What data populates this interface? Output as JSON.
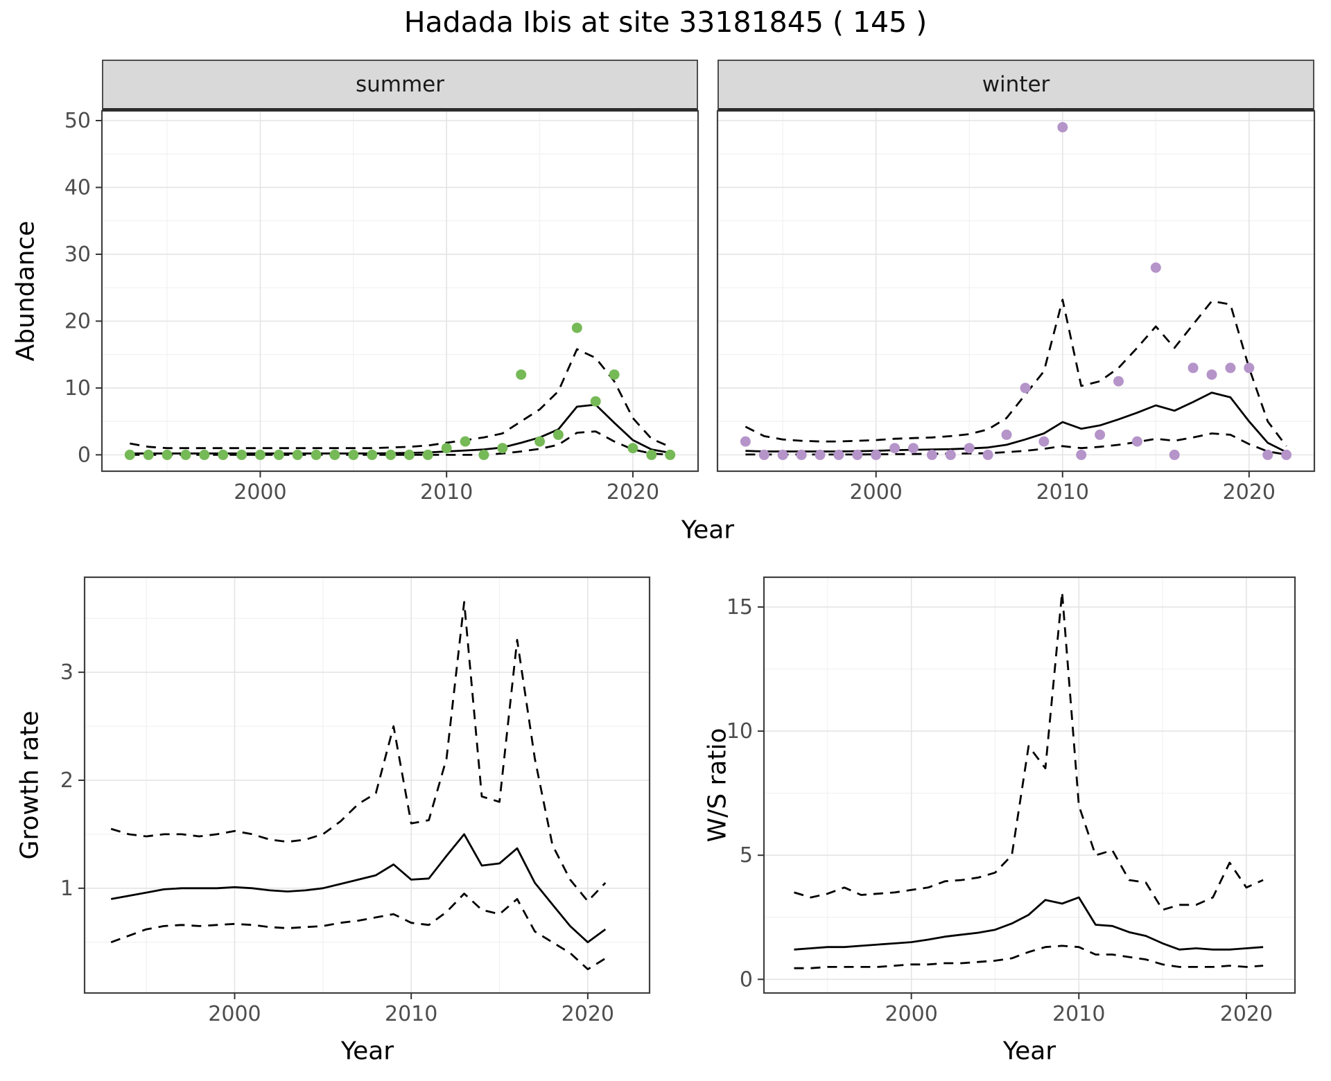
{
  "title": "Hadada Ibis at site 33181845 ( 145 )",
  "colors": {
    "summer_point": "#76b957",
    "winter_point": "#b594c9",
    "line": "#000000",
    "grid_major": "#e4e4e4",
    "grid_minor": "#f1f1f1",
    "panel_border": "#404040",
    "tick": "#333333",
    "strip_bg": "#d9d9d9"
  },
  "chart_data": [
    {
      "id": "abundance_summer",
      "type": "scatter+line",
      "facet_label": "summer",
      "xlabel": "Year",
      "ylabel": "Abundance",
      "xlim": [
        1991.5,
        2023.5
      ],
      "ylim": [
        -2.45,
        51.45
      ],
      "xticks": [
        2000,
        2010,
        2020
      ],
      "yticks": [
        0,
        10,
        20,
        30,
        40,
        50
      ],
      "xminor": [
        1995,
        2005,
        2015
      ],
      "yminor": [
        5,
        15,
        25,
        35,
        45
      ],
      "legend": "none",
      "grid": true,
      "point_color": "#76b957",
      "x": [
        1993,
        1994,
        1995,
        1996,
        1997,
        1998,
        1999,
        2000,
        2001,
        2002,
        2003,
        2004,
        2005,
        2006,
        2007,
        2008,
        2009,
        2010,
        2011,
        2012,
        2013,
        2014,
        2015,
        2016,
        2017,
        2018,
        2019,
        2020,
        2021,
        2022
      ],
      "points": [
        0,
        0,
        0,
        0,
        0,
        0,
        0,
        0,
        0,
        0,
        0,
        0,
        0,
        0,
        0,
        0,
        0,
        1,
        2,
        0,
        1,
        12,
        2,
        3,
        19,
        8,
        12,
        1,
        0,
        0
      ],
      "fit": [
        0.2,
        0.2,
        0.2,
        0.2,
        0.2,
        0.2,
        0.2,
        0.2,
        0.2,
        0.2,
        0.2,
        0.2,
        0.2,
        0.2,
        0.25,
        0.3,
        0.35,
        0.5,
        0.65,
        0.8,
        1.1,
        1.8,
        2.6,
        3.8,
        7.2,
        7.5,
        4.8,
        2.2,
        0.8,
        0.3
      ],
      "upper": [
        1.7,
        1.2,
        1.0,
        1.0,
        1.0,
        1.0,
        1.0,
        1.0,
        1.0,
        1.0,
        1.0,
        1.0,
        1.0,
        1.0,
        1.1,
        1.2,
        1.4,
        1.8,
        2.2,
        2.6,
        3.2,
        5.0,
        6.8,
        9.5,
        15.8,
        14.5,
        11.0,
        5.5,
        2.4,
        1.2
      ],
      "lower": [
        0,
        0,
        0,
        0,
        0,
        0,
        0,
        0,
        0,
        0,
        0,
        0,
        0,
        0,
        0,
        0,
        0,
        0,
        0,
        0,
        0.2,
        0.5,
        0.9,
        1.5,
        3.3,
        3.5,
        2.0,
        0.8,
        0.2,
        0
      ]
    },
    {
      "id": "abundance_winter",
      "type": "scatter+line",
      "facet_label": "winter",
      "xlabel": "Year",
      "ylabel": "Abundance",
      "xlim": [
        1991.5,
        2023.5
      ],
      "ylim": [
        -2.45,
        51.45
      ],
      "xticks": [
        2000,
        2010,
        2020
      ],
      "yticks": [
        0,
        10,
        20,
        30,
        40,
        50
      ],
      "xminor": [
        1995,
        2005,
        2015
      ],
      "yminor": [
        5,
        15,
        25,
        35,
        45
      ],
      "legend": "none",
      "grid": true,
      "point_color": "#b594c9",
      "x": [
        1993,
        1994,
        1995,
        1996,
        1997,
        1998,
        1999,
        2000,
        2001,
        2002,
        2003,
        2004,
        2005,
        2006,
        2007,
        2008,
        2009,
        2010,
        2011,
        2012,
        2013,
        2014,
        2015,
        2016,
        2017,
        2018,
        2019,
        2020,
        2021,
        2022
      ],
      "points": [
        2,
        0,
        0,
        0,
        0,
        0,
        0,
        0,
        1,
        1,
        0,
        0,
        1,
        0,
        3,
        10,
        2,
        49,
        0,
        3,
        11,
        2,
        28,
        0,
        13,
        12,
        13,
        13,
        0,
        0
      ],
      "fit": [
        0.6,
        0.5,
        0.5,
        0.5,
        0.5,
        0.5,
        0.55,
        0.6,
        0.7,
        0.75,
        0.8,
        0.85,
        0.95,
        1.1,
        1.5,
        2.3,
        3.2,
        4.9,
        3.9,
        4.4,
        5.3,
        6.3,
        7.4,
        6.6,
        7.9,
        9.3,
        8.6,
        5.0,
        1.8,
        0.4
      ],
      "upper": [
        4.2,
        2.8,
        2.3,
        2.1,
        2.0,
        2.0,
        2.1,
        2.2,
        2.4,
        2.5,
        2.6,
        2.8,
        3.1,
        3.8,
        5.5,
        9.0,
        12.5,
        23.2,
        10.3,
        11.0,
        13.0,
        16.0,
        19.2,
        16.0,
        19.5,
        23.0,
        22.5,
        13.0,
        5.0,
        1.3
      ],
      "lower": [
        0.05,
        0.05,
        0.05,
        0.05,
        0.05,
        0.05,
        0.05,
        0.08,
        0.1,
        0.12,
        0.15,
        0.18,
        0.2,
        0.25,
        0.4,
        0.6,
        0.9,
        1.3,
        1.0,
        1.2,
        1.5,
        1.9,
        2.4,
        2.1,
        2.6,
        3.2,
        3.0,
        1.6,
        0.5,
        0.05
      ]
    },
    {
      "id": "growth_rate",
      "type": "line",
      "facet_label": null,
      "xlabel": "Year",
      "ylabel": "Growth rate",
      "xlim": [
        1991.5,
        2023.5
      ],
      "ylim": [
        0.03,
        3.88
      ],
      "xticks": [
        2000,
        2010,
        2020
      ],
      "yticks": [
        1,
        2,
        3
      ],
      "xminor": [
        1995,
        2005,
        2015
      ],
      "yminor": [
        0.5,
        1.5,
        2.5,
        3.5
      ],
      "legend": "none",
      "grid": true,
      "x": [
        1993,
        1994,
        1995,
        1996,
        1997,
        1998,
        1999,
        2000,
        2001,
        2002,
        2003,
        2004,
        2005,
        2006,
        2007,
        2008,
        2009,
        2010,
        2011,
        2012,
        2013,
        2014,
        2015,
        2016,
        2017,
        2018,
        2019,
        2020,
        2021
      ],
      "fit": [
        0.9,
        0.93,
        0.96,
        0.99,
        1.0,
        1.0,
        1.0,
        1.01,
        1.0,
        0.98,
        0.97,
        0.98,
        1.0,
        1.04,
        1.08,
        1.12,
        1.22,
        1.08,
        1.09,
        1.3,
        1.5,
        1.21,
        1.23,
        1.37,
        1.05,
        0.85,
        0.65,
        0.5,
        0.62
      ],
      "upper": [
        1.55,
        1.5,
        1.48,
        1.5,
        1.5,
        1.48,
        1.5,
        1.53,
        1.5,
        1.45,
        1.43,
        1.45,
        1.5,
        1.62,
        1.78,
        1.88,
        2.5,
        1.6,
        1.63,
        2.2,
        3.65,
        1.85,
        1.8,
        3.3,
        2.2,
        1.4,
        1.08,
        0.88,
        1.05
      ],
      "lower": [
        0.5,
        0.56,
        0.62,
        0.65,
        0.66,
        0.65,
        0.66,
        0.67,
        0.66,
        0.64,
        0.63,
        0.64,
        0.65,
        0.68,
        0.7,
        0.73,
        0.76,
        0.68,
        0.66,
        0.78,
        0.95,
        0.8,
        0.76,
        0.9,
        0.6,
        0.5,
        0.4,
        0.25,
        0.35
      ]
    },
    {
      "id": "ws_ratio",
      "type": "line",
      "facet_label": null,
      "xlabel": "Year",
      "ylabel": "W/S ratio",
      "xlim": [
        1991.2,
        2022.9
      ],
      "ylim": [
        -0.55,
        16.2
      ],
      "xticks": [
        2000,
        2010,
        2020
      ],
      "yticks": [
        0,
        5,
        10,
        15
      ],
      "xminor": [
        1995,
        2005,
        2015
      ],
      "yminor": [
        2.5,
        7.5,
        12.5
      ],
      "legend": "none",
      "grid": true,
      "x": [
        1993,
        1994,
        1995,
        1996,
        1997,
        1998,
        1999,
        2000,
        2001,
        2002,
        2003,
        2004,
        2005,
        2006,
        2007,
        2008,
        2009,
        2010,
        2011,
        2012,
        2013,
        2014,
        2015,
        2016,
        2017,
        2018,
        2019,
        2020,
        2021
      ],
      "fit": [
        1.2,
        1.25,
        1.3,
        1.3,
        1.35,
        1.4,
        1.45,
        1.5,
        1.6,
        1.72,
        1.8,
        1.88,
        2.0,
        2.25,
        2.6,
        3.2,
        3.05,
        3.3,
        2.2,
        2.15,
        1.9,
        1.75,
        1.45,
        1.2,
        1.25,
        1.2,
        1.2,
        1.25,
        1.3
      ],
      "upper": [
        3.5,
        3.3,
        3.45,
        3.7,
        3.4,
        3.45,
        3.5,
        3.6,
        3.7,
        3.95,
        4.0,
        4.1,
        4.3,
        5.0,
        9.4,
        8.5,
        15.6,
        7.0,
        5.0,
        5.2,
        4.0,
        3.9,
        2.8,
        3.0,
        3.0,
        3.3,
        4.7,
        3.7,
        4.0
      ],
      "lower": [
        0.45,
        0.45,
        0.5,
        0.5,
        0.5,
        0.5,
        0.55,
        0.6,
        0.6,
        0.65,
        0.65,
        0.7,
        0.75,
        0.85,
        1.1,
        1.3,
        1.35,
        1.3,
        1.0,
        1.0,
        0.9,
        0.8,
        0.6,
        0.5,
        0.5,
        0.5,
        0.55,
        0.5,
        0.55
      ]
    }
  ]
}
